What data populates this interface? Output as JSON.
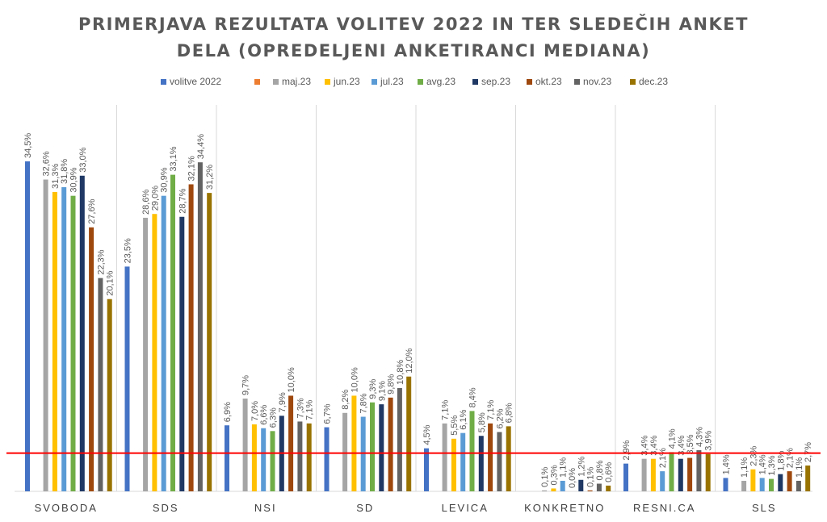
{
  "chart_data": {
    "type": "bar",
    "title_lines": [
      "PRIMERJAVA REZULTATA VOLITEV 2022 IN TER SLEDEČIH ANKET",
      "DELA (OPREDELJENI ANKETIRANCI MEDIANA)"
    ],
    "categories": [
      "SVOBODA",
      "SDS",
      "NSI",
      "SD",
      "LEVICA",
      "KONKRETNO",
      "RESNI.CA",
      "SLS"
    ],
    "ylim": [
      0,
      36
    ],
    "grid": false,
    "legend_position": "top",
    "series": [
      {
        "name": "volitve 2022",
        "color": "#4472C4",
        "values": [
          34.5,
          23.5,
          6.9,
          6.7,
          4.5,
          null,
          2.9,
          1.4
        ],
        "labels": [
          "34,5%",
          "23,5%",
          "6,9%",
          "6,7%",
          "4,5%",
          null,
          "2,9%",
          "1,4%"
        ]
      },
      {
        "name": "",
        "color": "#ED7D31",
        "values": [
          null,
          null,
          null,
          null,
          null,
          null,
          null,
          null
        ],
        "labels": [
          null,
          null,
          null,
          null,
          null,
          null,
          null,
          null
        ]
      },
      {
        "name": "maj.23",
        "color": "#A5A5A5",
        "values": [
          32.6,
          28.6,
          9.7,
          8.2,
          7.1,
          0.1,
          3.4,
          1.1
        ],
        "labels": [
          "32,6%",
          "28,6%",
          "9,7%",
          "8,2%",
          "7,1%",
          "0,1%",
          "3,4%",
          "1,1%"
        ]
      },
      {
        "name": "jun.23",
        "color": "#FFC000",
        "values": [
          31.3,
          29.0,
          7.0,
          10.0,
          5.5,
          0.3,
          3.4,
          2.3
        ],
        "labels": [
          "31,3%",
          "29,0%",
          "7,0%",
          "10,0%",
          "5,5%",
          "0,3%",
          "3,4%",
          "2,3%"
        ]
      },
      {
        "name": "jul.23",
        "color": "#5B9BD5",
        "values": [
          31.8,
          30.9,
          6.6,
          7.8,
          6.1,
          1.1,
          2.1,
          1.4
        ],
        "labels": [
          "31,8%",
          "30,9%",
          "6,6%",
          "7,8%",
          "6,1%",
          "1,1%",
          "2,1%",
          "1,4%"
        ]
      },
      {
        "name": "avg.23",
        "color": "#70AD47",
        "values": [
          30.9,
          33.1,
          6.3,
          9.3,
          8.4,
          0.0,
          4.1,
          1.3
        ],
        "labels": [
          "30,9%",
          "33,1%",
          "6,3%",
          "9,3%",
          "8,4%",
          "0,0%",
          "4,1%",
          "1,3%"
        ]
      },
      {
        "name": "sep.23",
        "color": "#1F3864",
        "values": [
          33.0,
          28.7,
          7.9,
          9.1,
          5.8,
          1.2,
          3.4,
          1.8
        ],
        "labels": [
          "33,0%",
          "28,7%",
          "7,9%",
          "9,1%",
          "5,8%",
          "1,2%",
          "3,4%",
          "1,8%"
        ]
      },
      {
        "name": "okt.23",
        "color": "#9E480E",
        "values": [
          27.6,
          32.1,
          10.0,
          9.8,
          7.1,
          0.1,
          3.5,
          2.1
        ],
        "labels": [
          "27,6%",
          "32,1%",
          "10,0%",
          "9,8%",
          "7,1%",
          "0,1%",
          "3,5%",
          "2,1%"
        ]
      },
      {
        "name": "nov.23",
        "color": "#636363",
        "values": [
          22.3,
          34.4,
          7.3,
          10.8,
          6.2,
          0.8,
          4.3,
          1.1
        ],
        "labels": [
          "22,3%",
          "34,4%",
          "7,3%",
          "10,8%",
          "6,2%",
          "0,8%",
          "4,3%",
          "1,1%"
        ]
      },
      {
        "name": "dec.23",
        "color": "#997300",
        "values": [
          20.1,
          31.2,
          7.1,
          12.0,
          6.8,
          0.6,
          3.9,
          2.7
        ],
        "labels": [
          "20,1%",
          "31,2%",
          "7,1%",
          "12,0%",
          "6,8%",
          "0,6%",
          "3,9%",
          "2,7%"
        ]
      }
    ],
    "reference_line": {
      "value": 4.0,
      "color": "#FF0000"
    }
  }
}
